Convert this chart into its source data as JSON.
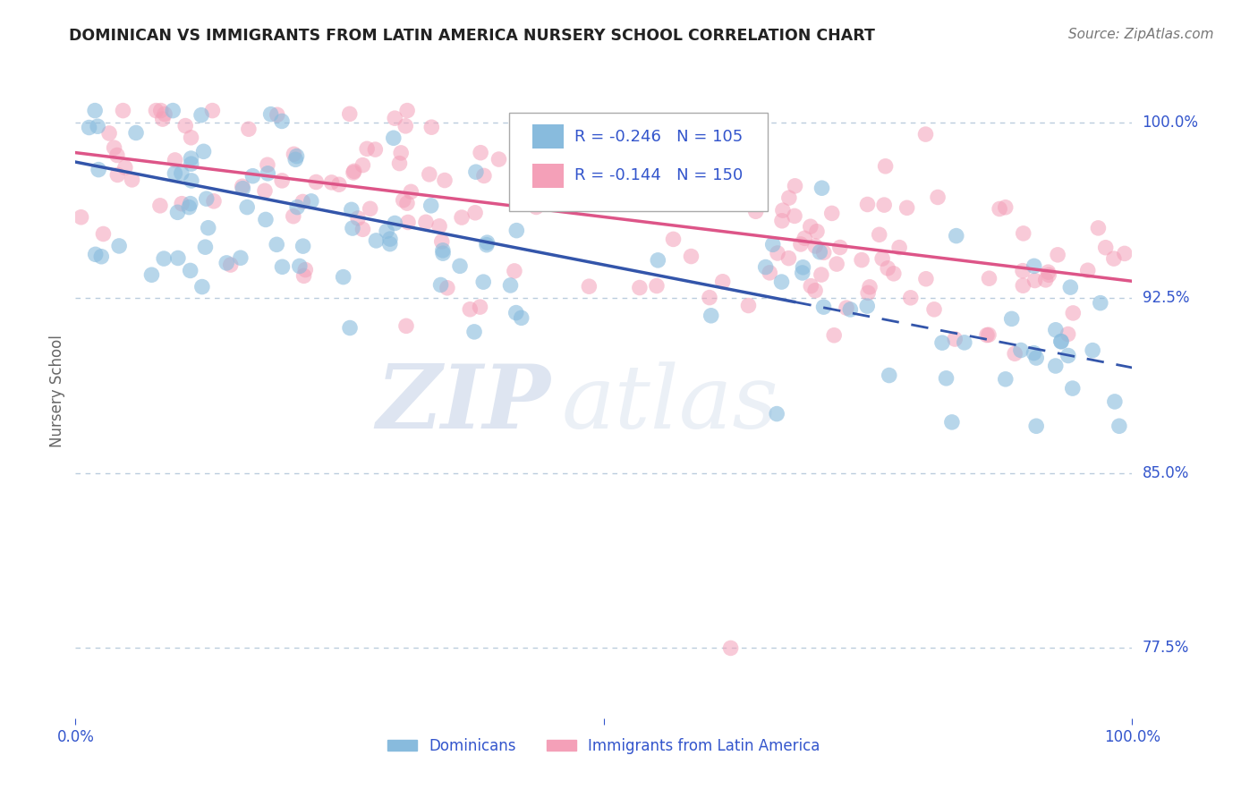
{
  "title": "DOMINICAN VS IMMIGRANTS FROM LATIN AMERICA NURSERY SCHOOL CORRELATION CHART",
  "source": "Source: ZipAtlas.com",
  "ylabel": "Nursery School",
  "legend_label_1": "Dominicans",
  "legend_label_2": "Immigrants from Latin America",
  "R1": -0.246,
  "N1": 105,
  "R2": -0.144,
  "N2": 150,
  "color_blue": "#88bbdd",
  "color_pink": "#f4a0b8",
  "color_blue_line": "#3355aa",
  "color_pink_line": "#dd5588",
  "color_text_blue": "#3355cc",
  "color_grid": "#bbccdd",
  "watermark_zip": "ZIP",
  "watermark_atlas": "atlas",
  "xlim": [
    0.0,
    1.0
  ],
  "ylim": [
    0.745,
    1.025
  ],
  "yticks": [
    0.775,
    0.85,
    0.925,
    1.0
  ],
  "ytick_labels": [
    "77.5%",
    "85.0%",
    "92.5%",
    "100.0%"
  ],
  "blue_trend_start_x": 0.0,
  "blue_trend_end_x": 1.0,
  "blue_trend_start_y": 0.983,
  "blue_trend_end_y": 0.895,
  "blue_dash_split": 0.68,
  "pink_trend_start_x": 0.0,
  "pink_trend_end_x": 1.0,
  "pink_trend_start_y": 0.987,
  "pink_trend_end_y": 0.932
}
